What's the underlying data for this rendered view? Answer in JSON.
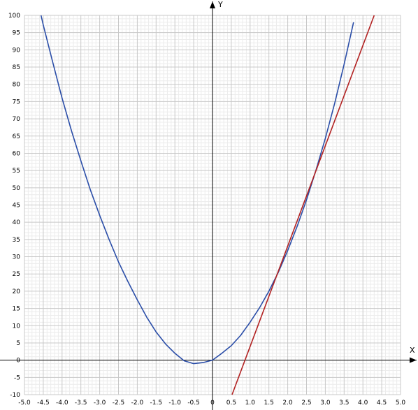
{
  "chart_data": {
    "type": "line",
    "title": "",
    "xlabel": "X",
    "ylabel": "Y",
    "xlim": [
      -5.0,
      5.0
    ],
    "ylim": [
      -10,
      100
    ],
    "grid": true,
    "x_ticks": [
      {
        "value": -5.0,
        "label": "-5.0"
      },
      {
        "value": -4.5,
        "label": "-4.5"
      },
      {
        "value": -4.0,
        "label": "-4.0"
      },
      {
        "value": -3.5,
        "label": "-3.5"
      },
      {
        "value": -3.0,
        "label": "-3.0"
      },
      {
        "value": -2.5,
        "label": "-2.5"
      },
      {
        "value": -2.0,
        "label": "-2.0"
      },
      {
        "value": -1.5,
        "label": "-1.5"
      },
      {
        "value": -1.0,
        "label": "-1.0"
      },
      {
        "value": -0.5,
        "label": "-0.5"
      },
      {
        "value": 0,
        "label": "0"
      },
      {
        "value": 0.5,
        "label": "0.5"
      },
      {
        "value": 1.0,
        "label": "1.0"
      },
      {
        "value": 1.5,
        "label": "1.5"
      },
      {
        "value": 2.0,
        "label": "2.0"
      },
      {
        "value": 2.5,
        "label": "2.5"
      },
      {
        "value": 3.0,
        "label": "3.0"
      },
      {
        "value": 3.5,
        "label": "3.5"
      },
      {
        "value": 4.0,
        "label": "4.0"
      },
      {
        "value": 4.5,
        "label": "4.5"
      },
      {
        "value": 5.0,
        "label": "5.0"
      }
    ],
    "y_ticks": [
      {
        "value": -10,
        "label": "-10"
      },
      {
        "value": -5,
        "label": "-5"
      },
      {
        "value": 0,
        "label": "0"
      },
      {
        "value": 5,
        "label": "5"
      },
      {
        "value": 10,
        "label": "10"
      },
      {
        "value": 15,
        "label": "15"
      },
      {
        "value": 20,
        "label": "20"
      },
      {
        "value": 25,
        "label": "25"
      },
      {
        "value": 30,
        "label": "30"
      },
      {
        "value": 35,
        "label": "35"
      },
      {
        "value": 40,
        "label": "40"
      },
      {
        "value": 45,
        "label": "45"
      },
      {
        "value": 50,
        "label": "50"
      },
      {
        "value": 55,
        "label": "55"
      },
      {
        "value": 60,
        "label": "60"
      },
      {
        "value": 65,
        "label": "65"
      },
      {
        "value": 70,
        "label": "70"
      },
      {
        "value": 75,
        "label": "75"
      },
      {
        "value": 80,
        "label": "80"
      },
      {
        "value": 85,
        "label": "85"
      },
      {
        "value": 90,
        "label": "90"
      },
      {
        "value": 95,
        "label": "95"
      },
      {
        "value": 100,
        "label": "100"
      }
    ],
    "series": [
      {
        "color": "#2b4ea8",
        "x": [
          -4.56,
          -4.5,
          -4.25,
          -4.0,
          -3.75,
          -3.5,
          -3.25,
          -3.0,
          -2.75,
          -2.5,
          -2.25,
          -2.0,
          -1.75,
          -1.5,
          -1.25,
          -1.0,
          -0.75,
          -0.5,
          -0.25,
          0.0,
          0.25,
          0.5,
          0.75,
          1.0,
          1.25,
          1.5,
          1.75,
          2.0,
          2.25,
          2.5,
          2.75,
          3.0,
          3.25,
          3.5,
          3.75
        ],
        "y": [
          100.0,
          97.2,
          86.5,
          76.0,
          66.5,
          57.8,
          49.5,
          42.0,
          35.0,
          28.5,
          22.8,
          17.5,
          12.5,
          8.2,
          4.7,
          2.0,
          -0.2,
          -1.0,
          -0.7,
          0.0,
          2.0,
          4.2,
          7.2,
          11.0,
          15.2,
          20.0,
          25.5,
          31.8,
          38.8,
          46.5,
          55.0,
          64.3,
          74.5,
          85.8,
          98.0
        ]
      },
      {
        "color": "#b22222",
        "x": [
          0.52,
          4.3
        ],
        "y": [
          -10,
          100
        ]
      }
    ]
  }
}
